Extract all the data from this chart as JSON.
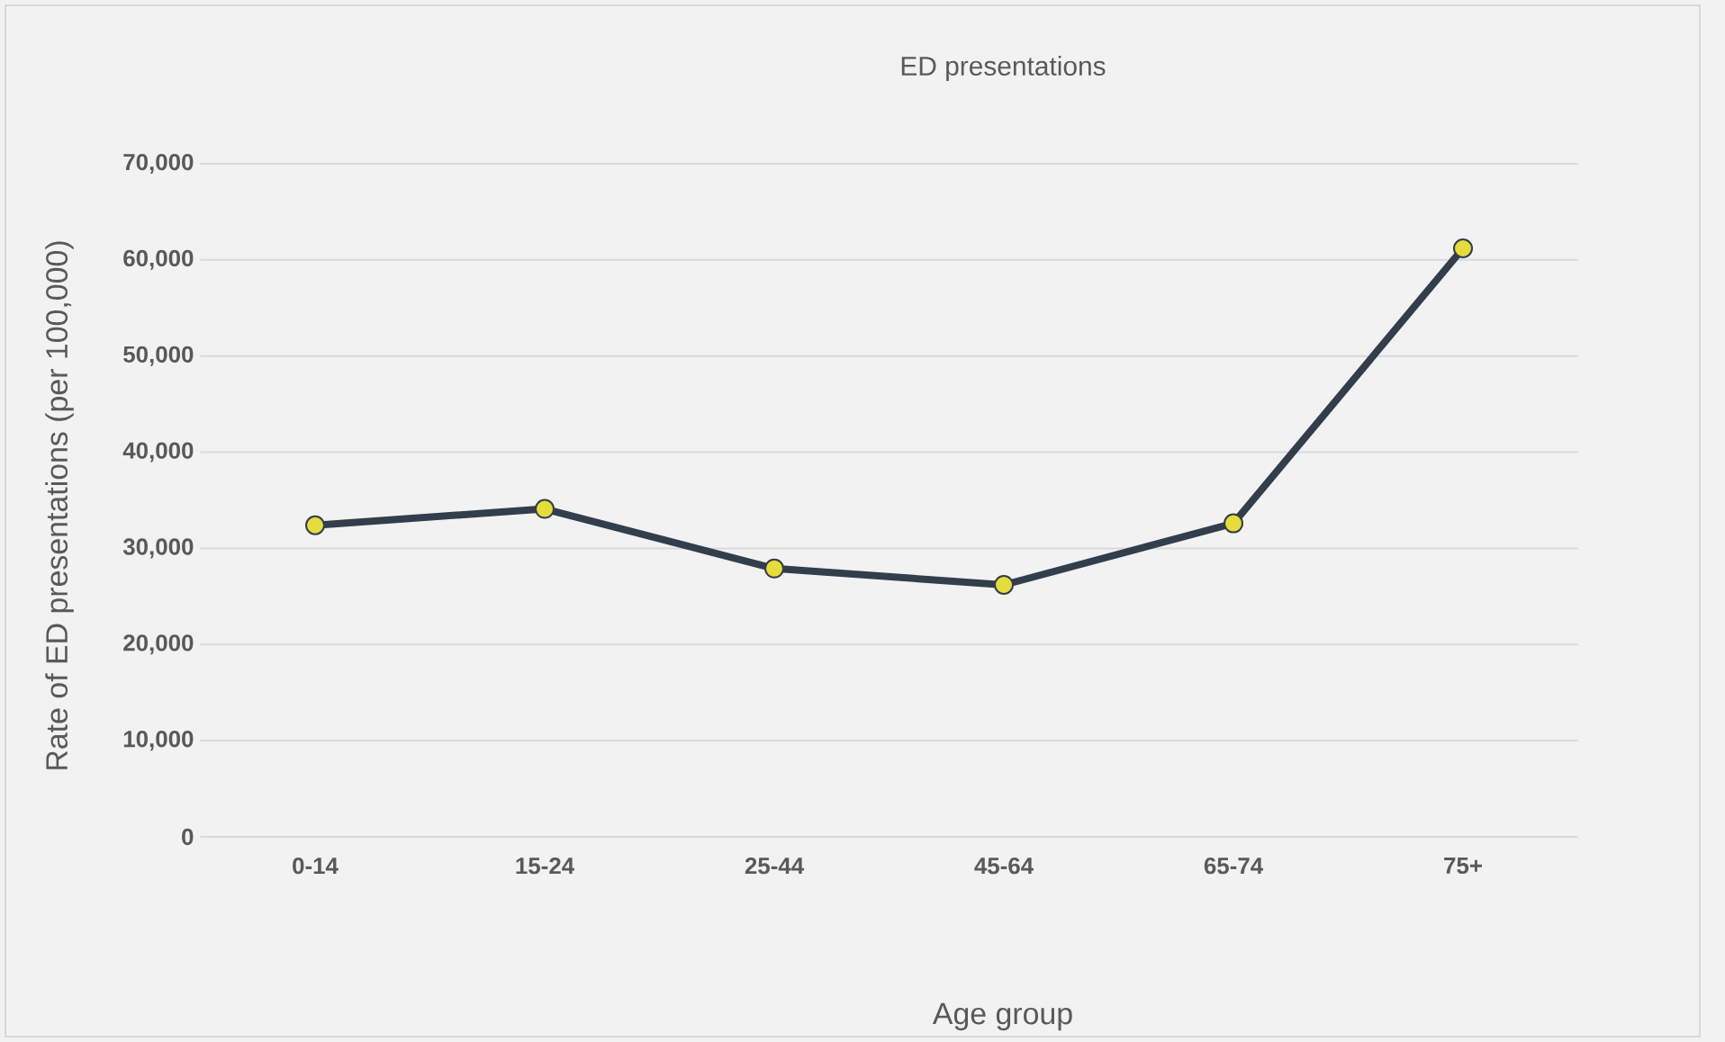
{
  "chart_data": {
    "type": "line",
    "title": "ED presentations",
    "xlabel": "Age group",
    "ylabel": "Rate of ED presentations (per 100,000)",
    "categories": [
      "0-14",
      "15-24",
      "25-44",
      "45-64",
      "65-74",
      "75+"
    ],
    "series": [
      {
        "color": "#323e4b",
        "values": [
          32400,
          34100,
          27900,
          26200,
          32600,
          61200
        ]
      }
    ],
    "ylim": [
      0,
      70000
    ],
    "yticks": [
      {
        "value": 0,
        "label": "0"
      },
      {
        "value": 10000,
        "label": "10,000"
      },
      {
        "value": 20000,
        "label": "20,000"
      },
      {
        "value": 30000,
        "label": "30,000"
      },
      {
        "value": 40000,
        "label": "40,000"
      },
      {
        "value": 50000,
        "label": "50,000"
      },
      {
        "value": 60000,
        "label": "60,000"
      },
      {
        "value": 70000,
        "label": "70,000"
      }
    ],
    "grid": "y",
    "marker": "circle",
    "line_style": "solid"
  }
}
